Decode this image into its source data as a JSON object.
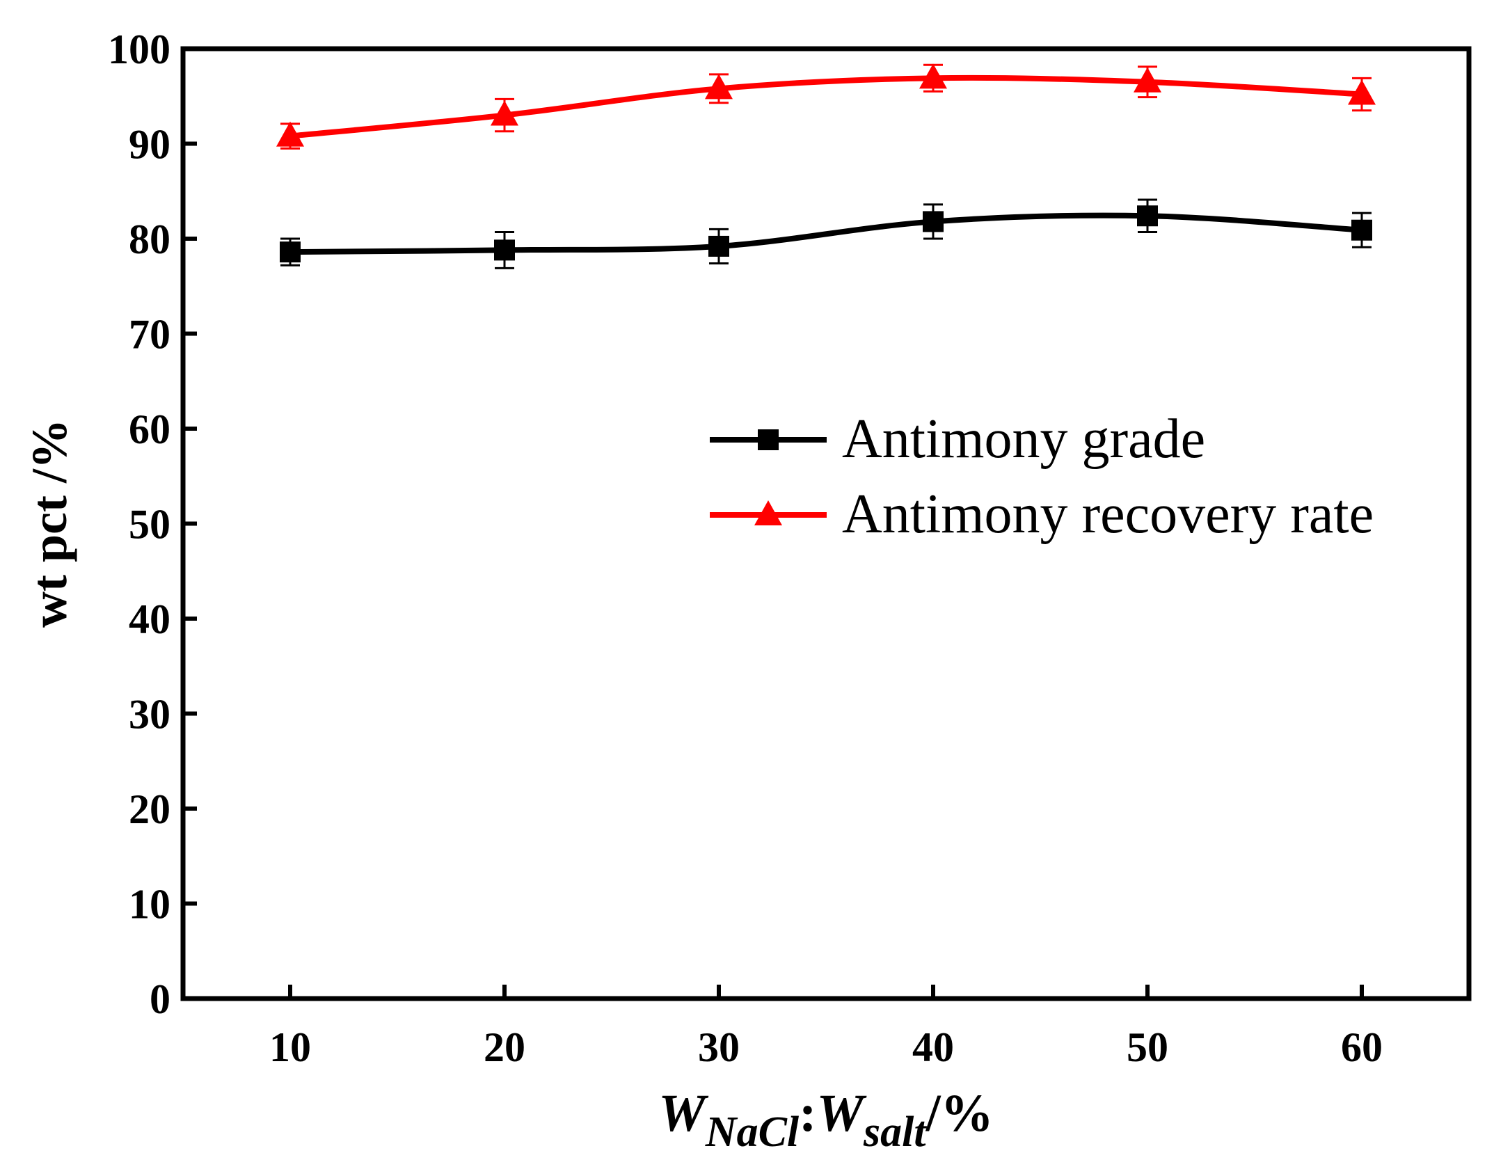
{
  "chart_data": {
    "type": "line",
    "title": "",
    "xlabel": {
      "main1": "W",
      "sub1": "NaCl",
      "sep": ":",
      "main2": "W",
      "sub2": "salt",
      "unit": "/%"
    },
    "ylabel": "wt pct /%",
    "x": [
      10,
      20,
      30,
      40,
      50,
      60
    ],
    "xlim": [
      5,
      65
    ],
    "ylim": [
      0,
      100
    ],
    "xticks": [
      10,
      20,
      30,
      40,
      50,
      60
    ],
    "yticks": [
      0,
      10,
      20,
      30,
      40,
      50,
      60,
      70,
      80,
      90,
      100
    ],
    "grid": false,
    "legend_position": "center-right",
    "series": [
      {
        "name": "Antimony grade",
        "color": "#000000",
        "marker": "square",
        "values": [
          78.6,
          78.8,
          79.2,
          81.8,
          82.4,
          80.9
        ],
        "errors": [
          1.4,
          1.9,
          1.8,
          1.8,
          1.7,
          1.8
        ]
      },
      {
        "name": "Antimony recovery rate",
        "color": "#ff0000",
        "marker": "triangle",
        "values": [
          90.8,
          93.0,
          95.8,
          96.9,
          96.5,
          95.2
        ],
        "errors": [
          1.3,
          1.7,
          1.5,
          1.4,
          1.6,
          1.7
        ]
      }
    ]
  }
}
